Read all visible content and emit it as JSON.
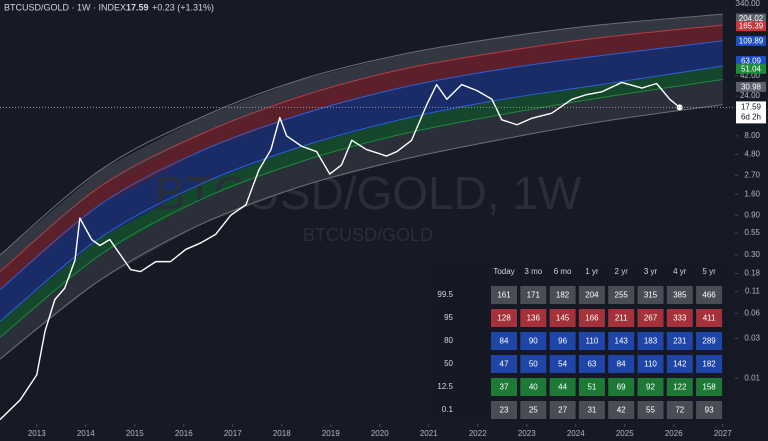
{
  "header": {
    "symbol": "BTCUSD/GOLD · 1W · INDEX",
    "price": "17.59",
    "change": "+0.23 (+1.31%)"
  },
  "chart_data": {
    "type": "line",
    "watermark": "BTCUSD/GOLD, 1W",
    "watermark_sub": "BTCUSD/GOLD",
    "log_scale": true,
    "xlim": [
      2012.25,
      2027.25
    ],
    "xticks": [
      2013,
      2014,
      2015,
      2016,
      2017,
      2018,
      2019,
      2020,
      2021,
      2022,
      2023,
      2024,
      2025,
      2026,
      2027
    ],
    "ylim": [
      0.003,
      340
    ],
    "yticks": [
      {
        "value": 340,
        "label": "340.00"
      },
      {
        "value": 42,
        "label": "42.00"
      },
      {
        "value": 24,
        "label": "24.00"
      },
      {
        "value": 8,
        "label": "8.00"
      },
      {
        "value": 4.8,
        "label": "4.80"
      },
      {
        "value": 2.7,
        "label": "2.70"
      },
      {
        "value": 1.6,
        "label": "1.60"
      },
      {
        "value": 0.9,
        "label": "0.90"
      },
      0.55,
      {
        "value": 0.3,
        "label": "0.30"
      },
      0.18,
      0.11,
      0.06,
      0.03,
      0.01
    ],
    "x": [
      2012.25,
      2012.66,
      2013.0,
      2013.17,
      2013.37,
      2013.57,
      2013.78,
      2013.88,
      2014.12,
      2014.29,
      2014.49,
      2014.71,
      2014.92,
      2015.12,
      2015.43,
      2015.73,
      2016.04,
      2016.35,
      2016.65,
      2016.96,
      2017.27,
      2017.53,
      2017.78,
      2017.96,
      2018.1,
      2018.41,
      2018.71,
      2018.98,
      2019.22,
      2019.43,
      2019.73,
      2020.14,
      2020.35,
      2020.65,
      2020.96,
      2021.16,
      2021.37,
      2021.67,
      2021.98,
      2022.29,
      2022.49,
      2022.8,
      2023.1,
      2023.51,
      2023.92,
      2024.22,
      2024.53,
      2024.94,
      2025.35,
      2025.65,
      2025.92,
      2026.12
    ],
    "series": [
      {
        "color": "#ffffff",
        "values": [
          0.0032,
          0.0055,
          0.011,
          0.037,
          0.088,
          0.12,
          0.26,
          0.83,
          0.46,
          0.39,
          0.46,
          0.3,
          0.2,
          0.19,
          0.25,
          0.25,
          0.35,
          0.42,
          0.53,
          0.9,
          1.2,
          3.1,
          5.5,
          13.3,
          8.0,
          6.0,
          5.2,
          2.8,
          3.6,
          7.1,
          5.5,
          4.6,
          5.2,
          7.1,
          19,
          33,
          22,
          33,
          28,
          22,
          12.5,
          10.9,
          13,
          15,
          22,
          25,
          27,
          35,
          30,
          34,
          22,
          17.59
        ]
      }
    ],
    "bands": {
      "x": [
        2012.25,
        2014.29,
        2016.33,
        2018.37,
        2020.41,
        2022.45,
        2024.49,
        2027.0
      ],
      "series": [
        {
          "color": "#6b6f7a",
          "fill": "rgba(120,123,134,0.30)",
          "values": [
            0.3,
            3.1,
            13.2,
            37.6,
            75,
            120,
            171,
            230
          ]
        },
        {
          "color": "#c0393f",
          "fill": "rgba(178,40,51,0.45)",
          "values": [
            0.19,
            1.97,
            8.3,
            23.6,
            49.6,
            81,
            120,
            170
          ]
        },
        {
          "color": "#2b5fd9",
          "fill": "rgba(30,60,160,0.55)",
          "values": [
            0.115,
            1.2,
            5.2,
            14.3,
            30,
            50,
            73,
            110
          ]
        },
        {
          "color": "#2b5fd9",
          "fill": "rgba(20,110,50,0.55)",
          "values": [
            0.048,
            0.48,
            2.1,
            5.9,
            12.5,
            21.7,
            32.8,
            55
          ]
        },
        {
          "color": "#1e8a3c",
          "fill": "rgba(120,123,134,0.22)",
          "values": [
            0.031,
            0.3,
            1.37,
            3.9,
            8.3,
            14.3,
            22.9,
            38
          ]
        },
        {
          "color": "#6b6f7a",
          "values": [
            0.017,
            0.15,
            0.69,
            1.97,
            4.1,
            7.2,
            11.8,
            19
          ]
        }
      ]
    },
    "scale_labels": [
      {
        "value": 204.02,
        "color": "#5d606b"
      },
      {
        "value": 165.39,
        "color": "#c0393f"
      },
      {
        "value": 109.89,
        "color": "#1f4fc4"
      },
      {
        "value": 63.09,
        "color": "#1f4fc4"
      },
      {
        "value": 51.04,
        "color": "#1e8a3c"
      },
      {
        "value": 30.98,
        "color": "#5d606b"
      }
    ],
    "price_tag": {
      "value": 17.59,
      "countdown": "6d 2h"
    }
  },
  "table": {
    "columns": [
      "Today",
      "3 mo",
      "6 mo",
      "1 yr",
      "2 yr",
      "3 yr",
      "4 yr",
      "5 yr"
    ],
    "rows": [
      {
        "label": "99.5",
        "color": "#4a4d56",
        "values": [
          161,
          171,
          182,
          204,
          255,
          315,
          385,
          466
        ]
      },
      {
        "label": "95",
        "color": "#a5323a",
        "values": [
          128,
          136,
          145,
          166,
          211,
          267,
          333,
          411
        ]
      },
      {
        "label": "80",
        "color": "#1f45a8",
        "values": [
          84,
          90,
          96,
          110,
          143,
          183,
          231,
          289
        ]
      },
      {
        "label": "50",
        "color": "#1f45a8",
        "values": [
          47,
          50,
          54,
          63,
          84,
          110,
          142,
          182
        ]
      },
      {
        "label": "12.5",
        "color": "#1c7a36",
        "values": [
          37,
          40,
          44,
          51,
          69,
          92,
          122,
          158
        ]
      },
      {
        "label": "0.1",
        "color": "#4a4d56",
        "values": [
          23,
          25,
          27,
          31,
          42,
          55,
          72,
          93
        ]
      }
    ]
  }
}
